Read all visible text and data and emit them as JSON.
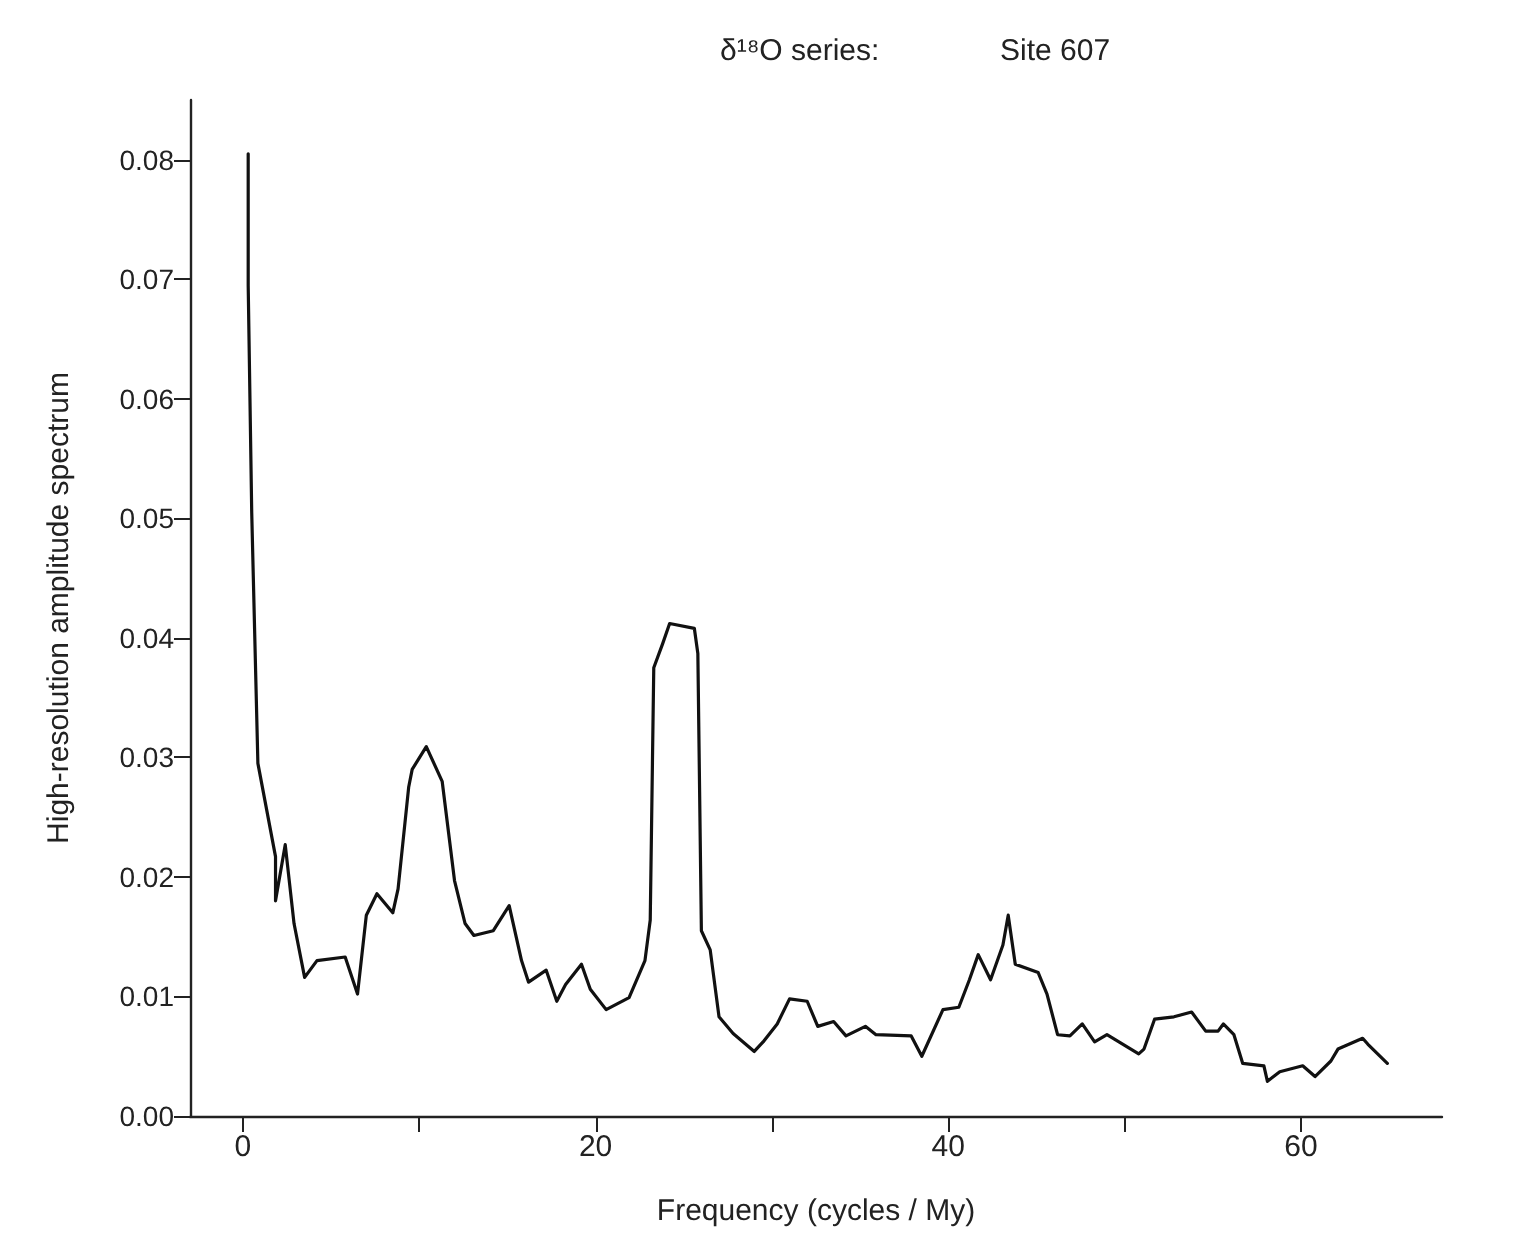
{
  "chart_data": {
    "type": "line",
    "xlabel": "Frequency (cycles / My)",
    "ylabel": "High-resolution amplitude spectrum",
    "annotations": [
      "δ¹⁸O series:",
      "Site 607"
    ],
    "x": [
      0.3,
      0.3,
      0.3,
      0.5,
      0.85,
      1.85,
      1.85,
      2.4,
      2.9,
      3.5,
      4.2,
      5.8,
      6.5,
      7.0,
      7.6,
      8.5,
      8.8,
      9.4,
      9.6,
      10.4,
      11.3,
      12.0,
      12.6,
      13.1,
      14.2,
      15.1,
      15.8,
      16.2,
      17.2,
      17.8,
      18.3,
      19.2,
      19.7,
      20.6,
      21.9,
      22.8,
      23.1,
      23.3,
      23.8,
      24.2,
      25.6,
      25.8,
      26.0,
      26.5,
      27.0,
      27.8,
      29.0,
      29.5,
      30.3,
      31.0,
      32.0,
      32.6,
      33.5,
      34.2,
      35.3,
      35.9,
      37.9,
      38.5,
      39.7,
      40.6,
      41.2,
      41.7,
      42.4,
      43.1,
      43.4,
      43.8,
      45.1,
      45.6,
      46.2,
      46.9,
      47.6,
      48.3,
      49.0,
      50.8,
      51.1,
      51.7,
      52.8,
      53.8,
      54.6,
      55.3,
      55.6,
      56.2,
      56.7,
      57.9,
      58.1,
      58.8,
      60.1,
      60.8,
      61.7,
      62.1,
      63.5,
      63.8,
      64.9
    ],
    "series": [
      {
        "color": "#111111",
        "values": [
          0.0805,
          0.0727,
          0.0695,
          0.0505,
          0.0295,
          0.0217,
          0.018,
          0.0227,
          0.0161,
          0.0116,
          0.013,
          0.0133,
          0.0102,
          0.0168,
          0.0186,
          0.017,
          0.019,
          0.0275,
          0.029,
          0.0309,
          0.028,
          0.0197,
          0.0161,
          0.0151,
          0.0155,
          0.0176,
          0.013,
          0.0112,
          0.0122,
          0.0096,
          0.011,
          0.0127,
          0.0106,
          0.0089,
          0.0099,
          0.013,
          0.0164,
          0.0375,
          0.0395,
          0.0412,
          0.0408,
          0.0387,
          0.0155,
          0.0139,
          0.0083,
          0.0069,
          0.0054,
          0.0062,
          0.0077,
          0.0098,
          0.0096,
          0.0075,
          0.0079,
          0.0067,
          0.0075,
          0.0068,
          0.0067,
          0.005,
          0.0089,
          0.0091,
          0.0114,
          0.0135,
          0.0114,
          0.0143,
          0.0168,
          0.0127,
          0.012,
          0.0102,
          0.0068,
          0.0067,
          0.0077,
          0.0062,
          0.0068,
          0.0052,
          0.0056,
          0.0081,
          0.0083,
          0.0087,
          0.0071,
          0.0071,
          0.0077,
          0.0068,
          0.0044,
          0.0042,
          0.0029,
          0.0037,
          0.0042,
          0.0033,
          0.0046,
          0.0056,
          0.0065,
          0.006,
          0.0044
        ]
      }
    ],
    "xlim": [
      -3,
      68
    ],
    "xticks": [
      0,
      {
        "value": 10,
        "label": null
      },
      20,
      {
        "value": 30,
        "label": null
      },
      40,
      {
        "value": 50,
        "label": null
      },
      60
    ],
    "ylim": [
      0,
      0.085
    ],
    "yticks": [
      {
        "value": 0,
        "label": "0.00"
      },
      {
        "value": 0.01,
        "label": "0.01"
      },
      {
        "value": 0.02,
        "label": "0.02"
      },
      {
        "value": 0.03,
        "label": "0.03"
      },
      {
        "value": 0.04,
        "label": "0.04"
      },
      {
        "value": 0.05,
        "label": "0.05"
      },
      {
        "value": 0.06,
        "label": "0.06"
      },
      {
        "value": 0.07,
        "label": "0.07"
      },
      {
        "value": 0.08,
        "label": "0.08"
      }
    ],
    "grid": false,
    "marker": "none",
    "line_style": "solid"
  }
}
